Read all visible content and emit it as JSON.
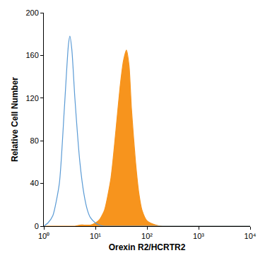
{
  "chart_data": {
    "type": "line",
    "x_label": "Orexin R2/HCRTR2",
    "y_label": "Relative Cell Number",
    "log": "x",
    "grid": false,
    "x": [
      1,
      1.2,
      1.5,
      2,
      2.5,
      3,
      3.2,
      3.5,
      4,
      5,
      6,
      7,
      8,
      10,
      12,
      15,
      20,
      25,
      30,
      35,
      40,
      45,
      50,
      60,
      70,
      80,
      100,
      150,
      200,
      300,
      1000,
      10000
    ],
    "series": [
      {
        "type": "area",
        "color": "#f7941d",
        "values": [
          0,
          0,
          0,
          0,
          0,
          0,
          0,
          0,
          0,
          1,
          1,
          1,
          1,
          3,
          6,
          15,
          45,
          90,
          130,
          155,
          165,
          150,
          110,
          60,
          30,
          15,
          5,
          1,
          0,
          0,
          0,
          0
        ]
      },
      {
        "type": "line",
        "color": "#5b9bd5",
        "values": [
          0,
          3,
          10,
          40,
          110,
          170,
          178,
          165,
          120,
          60,
          30,
          15,
          8,
          3,
          1,
          0,
          0,
          0,
          0,
          0,
          0,
          0,
          0,
          0,
          0,
          0,
          0,
          0,
          0,
          0,
          0,
          0
        ]
      }
    ],
    "xlim": [
      1,
      10000
    ],
    "xticks": [
      {
        "value": 1,
        "label": "10⁰"
      },
      {
        "value": 10,
        "label": "10¹"
      },
      {
        "value": 100,
        "label": "10²"
      },
      {
        "value": 1000,
        "label": "10³"
      },
      {
        "value": 10000,
        "label": "10⁴"
      }
    ],
    "ylim": [
      0,
      200
    ],
    "yticks": [
      0,
      40,
      80,
      120,
      160,
      200
    ]
  }
}
